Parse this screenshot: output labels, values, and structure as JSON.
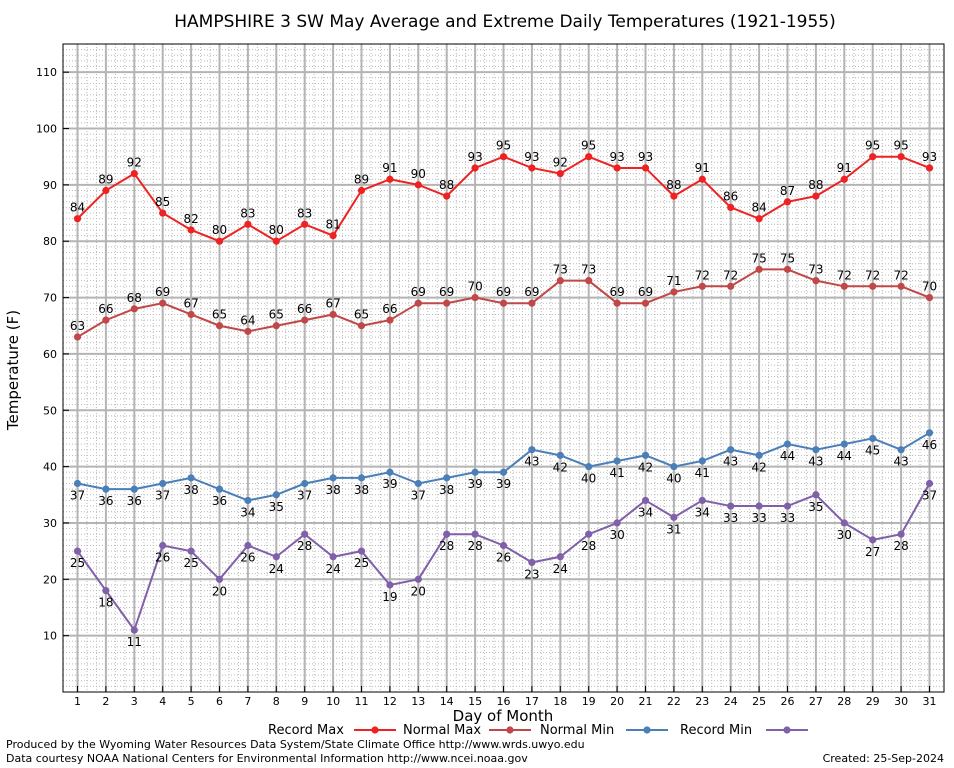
{
  "chart_data": {
    "type": "line",
    "title": "HAMPSHIRE 3 SW May Average and Extreme Daily Temperatures (1921-1955)",
    "xlabel": "Day of Month",
    "ylabel": "Temperature (F)",
    "x": [
      1,
      2,
      3,
      4,
      5,
      6,
      7,
      8,
      9,
      10,
      11,
      12,
      13,
      14,
      15,
      16,
      17,
      18,
      19,
      20,
      21,
      22,
      23,
      24,
      25,
      26,
      27,
      28,
      29,
      30,
      31
    ],
    "ylim": [
      0,
      115
    ],
    "yticks": [
      10,
      20,
      30,
      40,
      50,
      60,
      70,
      80,
      90,
      100,
      110
    ],
    "grid": true,
    "legend_position": "bottom",
    "series": [
      {
        "name": "Record Max",
        "color": "#ee2222",
        "values": [
          84,
          89,
          92,
          85,
          82,
          80,
          83,
          80,
          83,
          81,
          89,
          91,
          90,
          88,
          93,
          95,
          93,
          92,
          95,
          93,
          93,
          88,
          91,
          86,
          84,
          87,
          88,
          91,
          95,
          95,
          93
        ]
      },
      {
        "name": "Normal Max",
        "color": "#c04848",
        "values": [
          63,
          66,
          68,
          69,
          67,
          65,
          64,
          65,
          66,
          67,
          65,
          66,
          69,
          69,
          70,
          69,
          69,
          73,
          73,
          69,
          69,
          71,
          72,
          72,
          75,
          75,
          73,
          72,
          72,
          72,
          70
        ]
      },
      {
        "name": "Normal Min",
        "color": "#4a7fb8",
        "values": [
          37,
          36,
          36,
          37,
          38,
          36,
          34,
          35,
          37,
          38,
          38,
          39,
          37,
          38,
          39,
          39,
          43,
          42,
          40,
          41,
          42,
          40,
          41,
          43,
          42,
          44,
          43,
          44,
          45,
          43,
          46
        ]
      },
      {
        "name": "Record Min",
        "color": "#8060a8",
        "values": [
          25,
          18,
          11,
          26,
          25,
          20,
          26,
          24,
          28,
          24,
          25,
          19,
          20,
          28,
          28,
          26,
          23,
          24,
          28,
          30,
          34,
          31,
          34,
          33,
          33,
          33,
          35,
          30,
          27,
          28,
          37
        ]
      }
    ]
  },
  "footer": {
    "produced_by": "Produced by the Wyoming Water Resources Data System/State Climate Office http://www.wrds.uwyo.edu",
    "courtesy": "Data courtesy NOAA National Centers for Environmental Information http://www.ncei.noaa.gov",
    "created": "Created:  25-Sep-2024"
  }
}
